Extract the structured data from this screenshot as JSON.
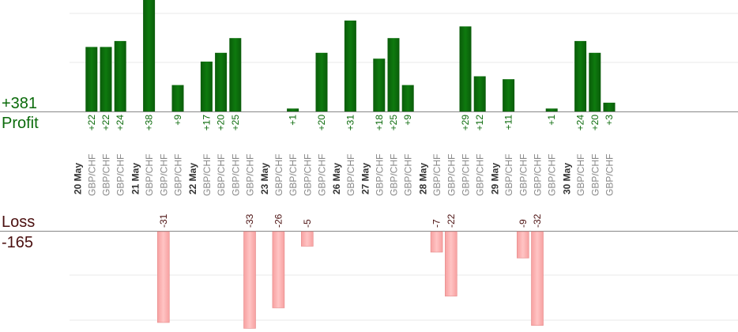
{
  "summary": {
    "profit_total": "+381",
    "profit_label": "Profit",
    "loss_label": "Loss",
    "loss_total": "-165"
  },
  "chart_data": {
    "type": "bar",
    "title": "",
    "xlabel": "",
    "ylabel": "",
    "colors": {
      "profit": "#0b6b0b",
      "loss": "#ffb8b8",
      "profit_text": "#0a6a0a",
      "loss_text": "#4a0f0f",
      "day_text": "#333333",
      "pair_text": "#888888",
      "grid": "#e8e8e8",
      "axis": "#888888"
    },
    "days": [
      "20 May",
      "21 May",
      "22 May",
      "23 May",
      "26 May",
      "27 May",
      "28 May",
      "29 May",
      "30 May"
    ],
    "slot_pitch": 18.2,
    "profit_ylim": [
      0,
      38
    ],
    "loss_ylim": [
      0,
      31
    ],
    "trades": [
      {
        "day": "20 May",
        "pair": "GBP/CHF",
        "value": 22
      },
      {
        "day": "20 May",
        "pair": "GBP/CHF",
        "value": 22
      },
      {
        "day": "20 May",
        "pair": "GBP/CHF",
        "value": 24
      },
      {
        "day": "21 May",
        "pair": "GBP/CHF",
        "value": 38
      },
      {
        "day": "21 May",
        "pair": "GBP/CHF",
        "value": -31
      },
      {
        "day": "21 May",
        "pair": "GBP/CHF",
        "value": 9
      },
      {
        "day": "22 May",
        "pair": "GBP/CHF",
        "value": 17
      },
      {
        "day": "22 May",
        "pair": "GBP/CHF",
        "value": 20
      },
      {
        "day": "22 May",
        "pair": "GBP/CHF",
        "value": 25
      },
      {
        "day": "22 May",
        "pair": "GBP/CHF",
        "value": -33
      },
      {
        "day": "23 May",
        "pair": "GBP/CHF",
        "value": -26
      },
      {
        "day": "23 May",
        "pair": "GBP/CHF",
        "value": 1
      },
      {
        "day": "23 May",
        "pair": "GBP/CHF",
        "value": -5
      },
      {
        "day": "23 May",
        "pair": "GBP/CHF",
        "value": 20
      },
      {
        "day": "26 May",
        "pair": "GBP/CHF",
        "value": 31
      },
      {
        "day": "27 May",
        "pair": "GBP/CHF",
        "value": 18
      },
      {
        "day": "27 May",
        "pair": "GBP/CHF",
        "value": 25
      },
      {
        "day": "27 May",
        "pair": "GBP/CHF",
        "value": 9
      },
      {
        "day": "28 May",
        "pair": "GBP/CHF",
        "value": -7
      },
      {
        "day": "28 May",
        "pair": "GBP/CHF",
        "value": -22
      },
      {
        "day": "28 May",
        "pair": "GBP/CHF",
        "value": 29
      },
      {
        "day": "28 May",
        "pair": "GBP/CHF",
        "value": 12
      },
      {
        "day": "29 May",
        "pair": "GBP/CHF",
        "value": 11
      },
      {
        "day": "29 May",
        "pair": "GBP/CHF",
        "value": -9
      },
      {
        "day": "29 May",
        "pair": "GBP/CHF",
        "value": -32
      },
      {
        "day": "29 May",
        "pair": "GBP/CHF",
        "value": 1
      },
      {
        "day": "30 May",
        "pair": "GBP/CHF",
        "value": 24
      },
      {
        "day": "30 May",
        "pair": "GBP/CHF",
        "value": 20
      },
      {
        "day": "30 May",
        "pair": "GBP/CHF",
        "value": 3
      }
    ]
  }
}
